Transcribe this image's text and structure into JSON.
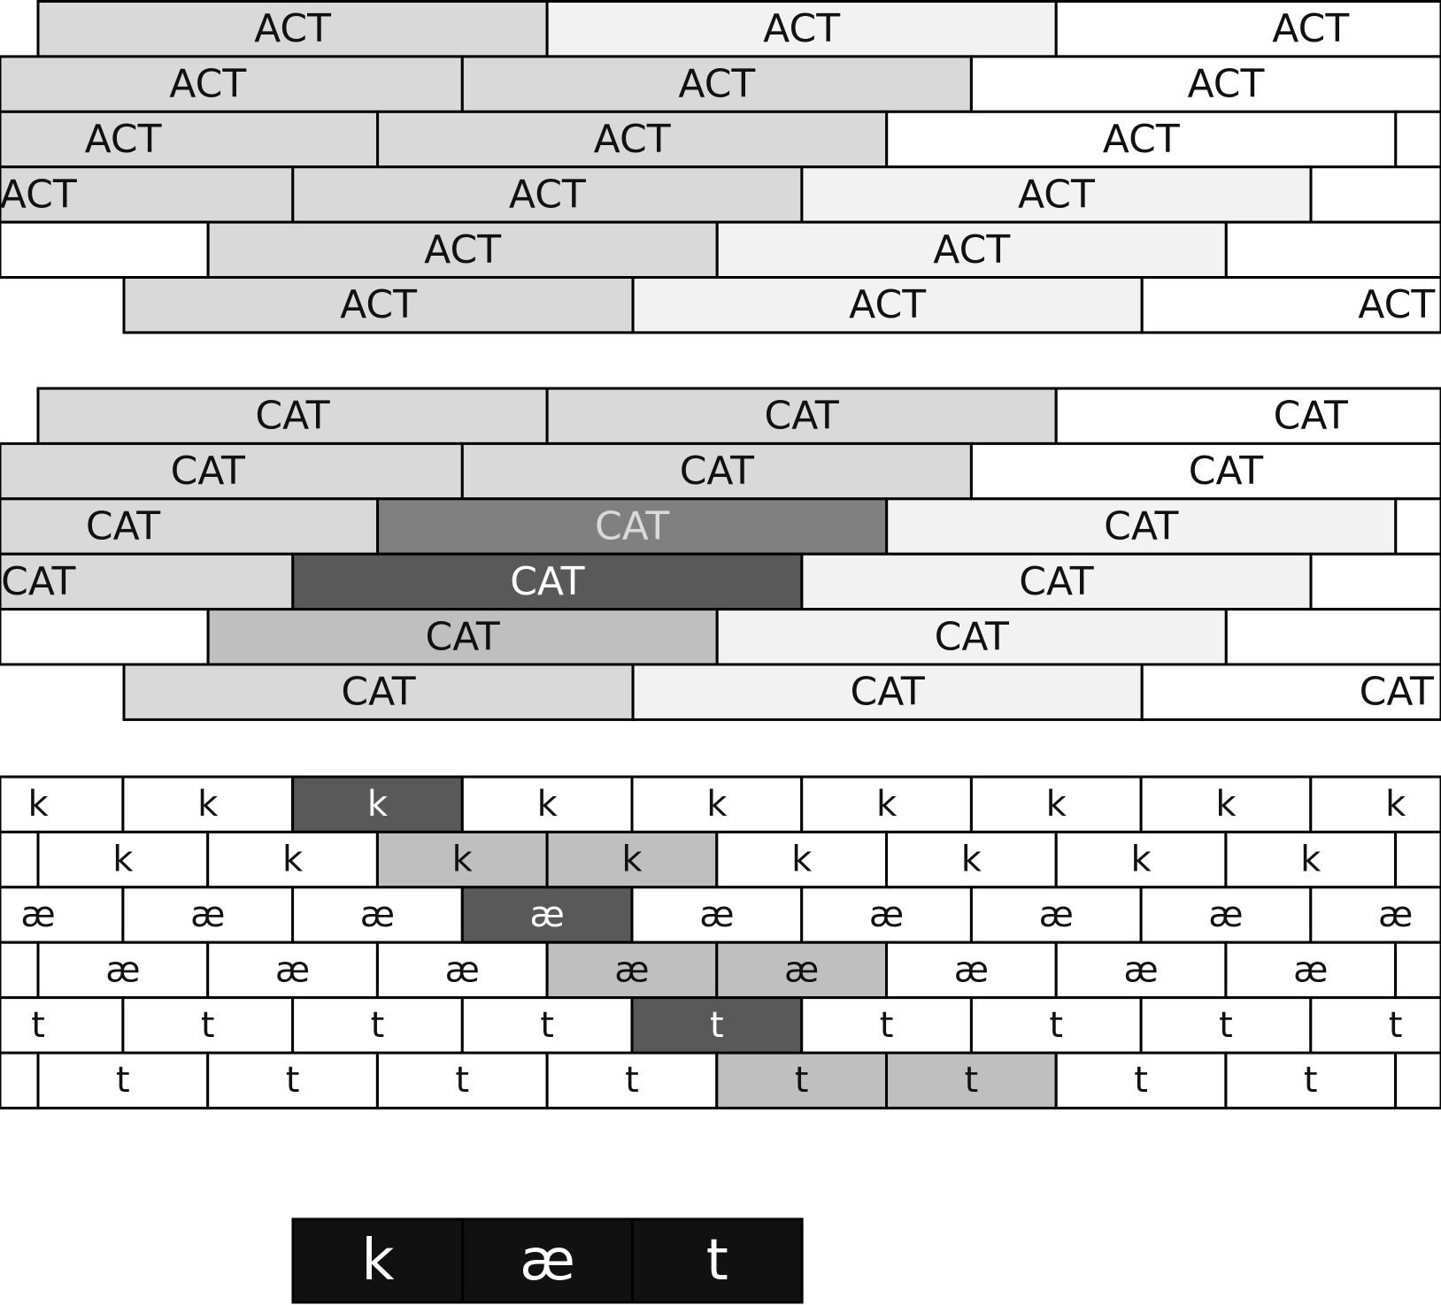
{
  "colors": {
    "white": "#ffffff",
    "lighter": "#f2f2f2",
    "light": "#d9d9d9",
    "mid": "#bfbfbf",
    "gray": "#808080",
    "dark": "#595959",
    "black": "#111111",
    "stroke": "#000000",
    "text": "#111111",
    "text_light": "#ffffff",
    "text_soft": "#d9d9d9"
  },
  "act_rows": [
    [
      {
        "label": "ACT",
        "fill": "light"
      },
      {
        "label": "ACT",
        "fill": "lighter"
      },
      {
        "label": "ACT",
        "fill": "white"
      }
    ],
    [
      {
        "label": "ACT",
        "fill": "light"
      },
      {
        "label": "ACT",
        "fill": "light"
      },
      {
        "label": "ACT",
        "fill": "white"
      }
    ],
    [
      {
        "label": "ACT",
        "fill": "light"
      },
      {
        "label": "ACT",
        "fill": "light"
      },
      {
        "label": "ACT",
        "fill": "white"
      },
      {
        "label": "",
        "fill": "white"
      }
    ],
    [
      {
        "label": "ACT",
        "fill": "light"
      },
      {
        "label": "ACT",
        "fill": "light"
      },
      {
        "label": "ACT",
        "fill": "lighter"
      },
      {
        "label": "",
        "fill": "white"
      }
    ],
    [
      {
        "label": "",
        "fill": "white"
      },
      {
        "label": "ACT",
        "fill": "light"
      },
      {
        "label": "ACT",
        "fill": "lighter"
      },
      {
        "label": "",
        "fill": "white"
      }
    ],
    [
      {
        "label": "ACT",
        "fill": "light"
      },
      {
        "label": "ACT",
        "fill": "lighter"
      },
      {
        "label": "ACT",
        "fill": "white"
      }
    ]
  ],
  "cat_rows": [
    [
      {
        "label": "CAT",
        "fill": "light"
      },
      {
        "label": "CAT",
        "fill": "light"
      },
      {
        "label": "CAT",
        "fill": "white"
      }
    ],
    [
      {
        "label": "CAT",
        "fill": "light"
      },
      {
        "label": "CAT",
        "fill": "light"
      },
      {
        "label": "CAT",
        "fill": "white"
      }
    ],
    [
      {
        "label": "CAT",
        "fill": "light"
      },
      {
        "label": "CAT",
        "fill": "gray",
        "text": "text_soft"
      },
      {
        "label": "CAT",
        "fill": "lighter"
      },
      {
        "label": "",
        "fill": "white"
      }
    ],
    [
      {
        "label": "CAT",
        "fill": "light"
      },
      {
        "label": "CAT",
        "fill": "dark",
        "text": "text_light"
      },
      {
        "label": "CAT",
        "fill": "lighter"
      },
      {
        "label": "",
        "fill": "white"
      }
    ],
    [
      {
        "label": "",
        "fill": "white"
      },
      {
        "label": "CAT",
        "fill": "mid"
      },
      {
        "label": "CAT",
        "fill": "lighter"
      },
      {
        "label": "",
        "fill": "white"
      }
    ],
    [
      {
        "label": "CAT",
        "fill": "light"
      },
      {
        "label": "CAT",
        "fill": "lighter"
      },
      {
        "label": "CAT",
        "fill": "white"
      }
    ]
  ],
  "phone_rows": [
    {
      "symbol": "k",
      "highlight": {
        "2": "dark"
      }
    },
    {
      "symbol": "k",
      "highlight": {
        "2": "mid",
        "3": "mid"
      }
    },
    {
      "symbol": "æ",
      "highlight": {
        "3": "dark"
      }
    },
    {
      "symbol": "æ",
      "highlight": {
        "3": "mid",
        "4": "mid"
      }
    },
    {
      "symbol": "t",
      "highlight": {
        "4": "dark"
      }
    },
    {
      "symbol": "t",
      "highlight": {
        "4": "mid",
        "5": "mid"
      }
    }
  ],
  "output": {
    "phones": [
      "k",
      "æ",
      "t"
    ],
    "fill": "black",
    "text": "text_light"
  }
}
